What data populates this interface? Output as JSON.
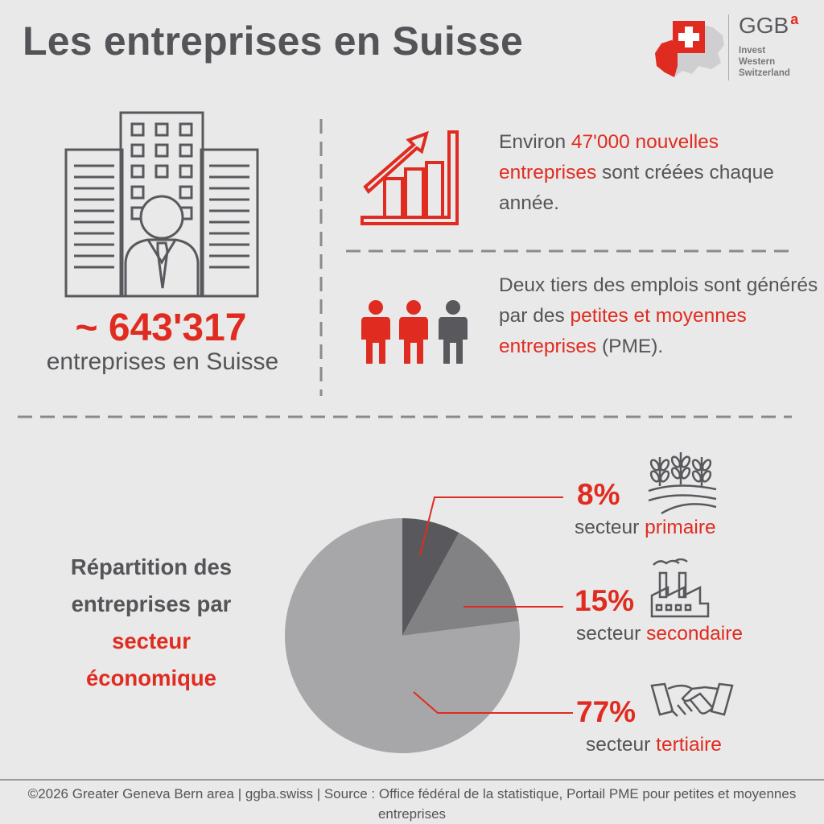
{
  "title": "Les entreprises en Suisse",
  "logo": {
    "name": "GGB",
    "superscript": "a",
    "lines": [
      "Invest",
      "Western",
      "Switzerland"
    ]
  },
  "total": {
    "value": "~ 643'317",
    "caption": "entreprises en Suisse"
  },
  "facts": [
    {
      "parts": [
        {
          "text": "Environ ",
          "red": false
        },
        {
          "text": "47'000 nouvelles entreprises",
          "red": true
        },
        {
          "text": " sont créées chaque année.",
          "red": false
        }
      ]
    },
    {
      "parts": [
        {
          "text": "Deux tiers des emplois sont générés par des ",
          "red": false
        },
        {
          "text": "petites et moyennes entreprises",
          "red": true
        },
        {
          "text": " (PME).",
          "red": false
        }
      ]
    }
  ],
  "pie_heading": {
    "line1": "Répartition des",
    "line2": "entreprises par",
    "line3": "secteur",
    "line4": "économique"
  },
  "chart_data": {
    "type": "pie",
    "title": "Répartition des entreprises par secteur économique",
    "slices": [
      {
        "percent_label": "8%",
        "value": 8,
        "prefix": "secteur ",
        "name": "primaire",
        "color": "#59595d"
      },
      {
        "percent_label": "15%",
        "value": 15,
        "prefix": "secteur ",
        "name": "secondaire",
        "color": "#828285"
      },
      {
        "percent_label": "77%",
        "value": 77,
        "prefix": "secteur ",
        "name": "tertiaire",
        "color": "#a7a7a9"
      }
    ]
  },
  "colors": {
    "accent": "#e02b20",
    "text": "#555559",
    "background": "#e9e9e9"
  },
  "icons": {
    "building": "office-building-person-icon",
    "growth": "growth-chart-arrow-icon",
    "people": "three-people-icon",
    "agriculture": "crops-field-icon",
    "industry": "factory-icon",
    "services": "handshake-icon"
  },
  "footer": "©2026 Greater Geneva Bern area | ggba.swiss | Source : Office fédéral de la statistique, Portail PME pour petites et moyennes entreprises"
}
